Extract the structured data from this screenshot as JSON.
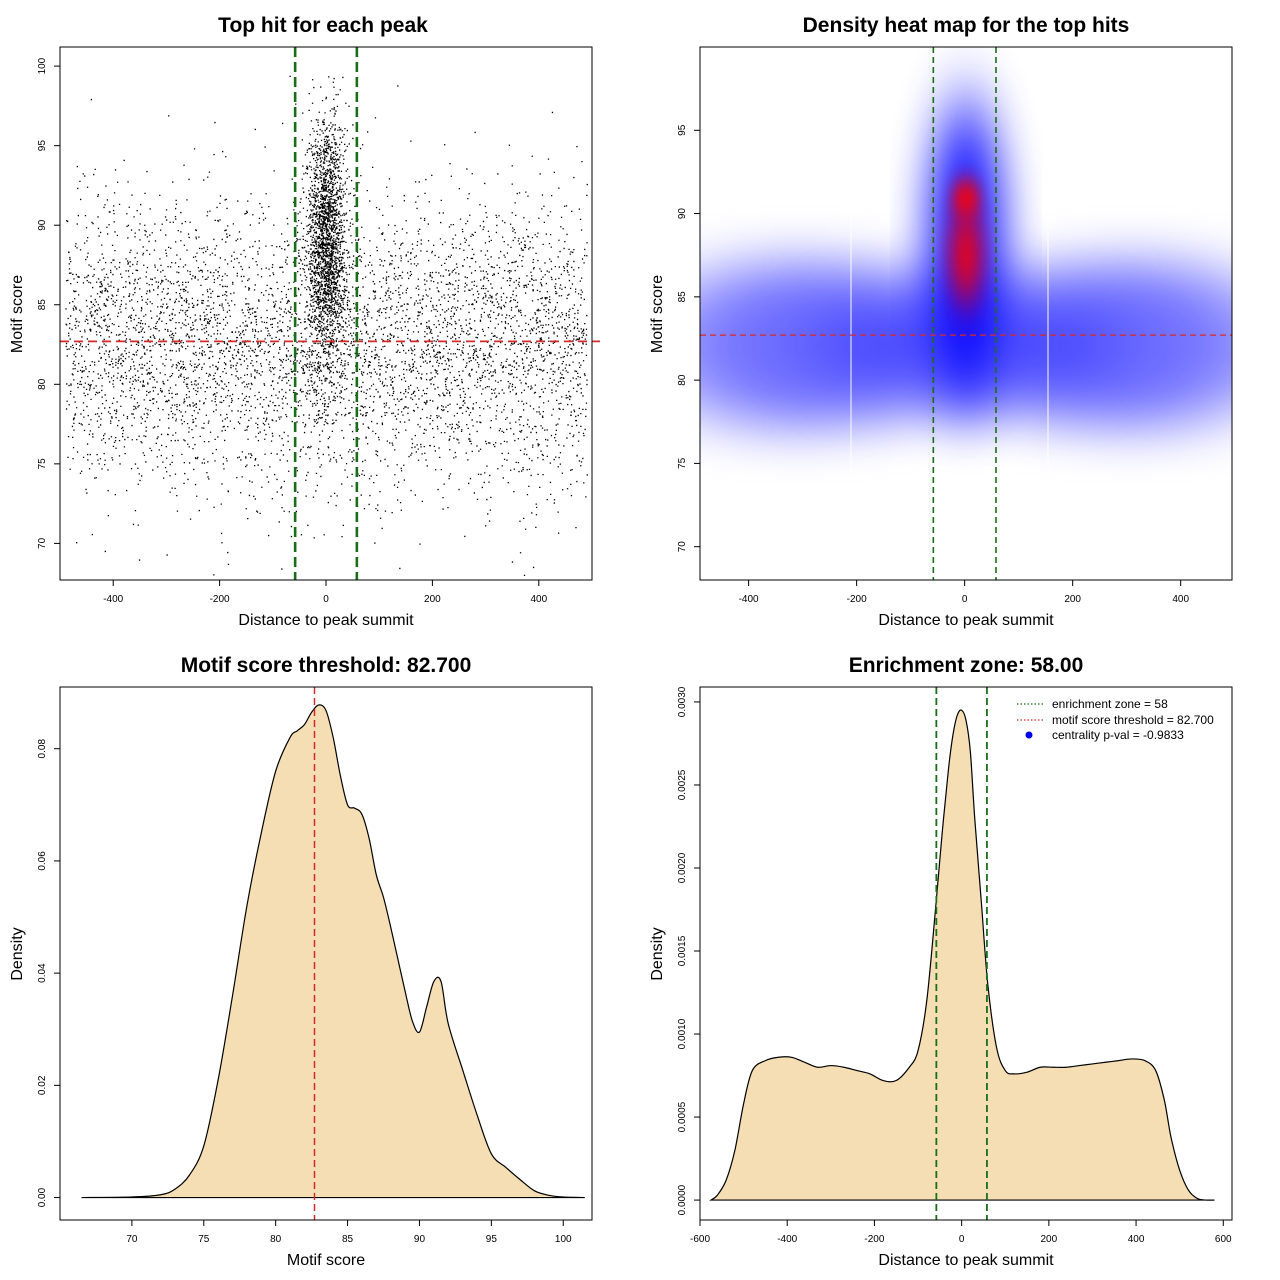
{
  "chart_data": [
    {
      "type": "scatter",
      "title": "Top hit for each peak",
      "xlabel": "Distance to peak summit",
      "ylabel": "Motif score",
      "xlim": [
        -500,
        500
      ],
      "ylim": [
        67.7,
        101.2
      ],
      "xticks": [
        -400,
        -200,
        0,
        200,
        400
      ],
      "yticks": [
        70,
        75,
        80,
        85,
        90,
        95,
        100
      ],
      "vlines": [
        -58,
        58
      ],
      "hline": 82.7,
      "point_color": "#000000",
      "vline_color": "#1a6e1a",
      "hline_color": "#d62a2a",
      "grid": false,
      "points_summary": {
        "background_x_range": [
          -490,
          490
        ],
        "background_y_mean": 82.5,
        "background_y_sd": 4.5,
        "central_cluster_x_sd": 18,
        "central_cluster_y_mean": 89,
        "central_cluster_y_sd": 4
      }
    },
    {
      "type": "heatmap",
      "title": "Density heat map for the top hits",
      "xlabel": "Distance to peak summit",
      "ylabel": "Motif score",
      "xlim": [
        -490,
        495
      ],
      "ylim": [
        68,
        100
      ],
      "xticks": [
        -400,
        -200,
        0,
        200,
        400
      ],
      "yticks": [
        70,
        75,
        80,
        85,
        90,
        95
      ],
      "vlines": [
        -58,
        58
      ],
      "hline": 82.7,
      "colors": [
        "#ffffff",
        "#0000ff",
        "#ff0000"
      ],
      "grid": false
    },
    {
      "type": "area",
      "title": "Motif score threshold: 82.700",
      "xlabel": "Motif score",
      "ylabel": "Density",
      "xlim": [
        65,
        102
      ],
      "ylim": [
        -0.004,
        0.091
      ],
      "xticks": [
        70,
        75,
        80,
        85,
        90,
        95,
        100
      ],
      "yticks": [
        0.0,
        0.02,
        0.04,
        0.06,
        0.08
      ],
      "ytick_labels": [
        "0.00",
        "0.02",
        "0.04",
        "0.06",
        "0.08"
      ],
      "vline": 82.7,
      "fill_color": "#f5deb3",
      "vline_color": "#d62a2a",
      "grid": false,
      "x": [
        66.5,
        70,
        72,
        73,
        74,
        75,
        76,
        77,
        78,
        79,
        80,
        81,
        81.5,
        82,
        82.5,
        83,
        83.5,
        84,
        84.5,
        85,
        85.5,
        86,
        86.5,
        87,
        87.5,
        88,
        88.5,
        89,
        89.5,
        90,
        90.5,
        91,
        91.5,
        92,
        93,
        94,
        95,
        96,
        97,
        98,
        99,
        100,
        101.5
      ],
      "y": [
        0.0,
        0.0001,
        0.0005,
        0.0015,
        0.004,
        0.0092,
        0.021,
        0.036,
        0.052,
        0.065,
        0.076,
        0.082,
        0.0832,
        0.0843,
        0.0865,
        0.0878,
        0.0868,
        0.082,
        0.0752,
        0.07,
        0.0694,
        0.0683,
        0.064,
        0.0575,
        0.0535,
        0.0482,
        0.0425,
        0.0368,
        0.0315,
        0.0295,
        0.034,
        0.0385,
        0.0385,
        0.031,
        0.0228,
        0.0148,
        0.0078,
        0.0054,
        0.0032,
        0.0012,
        0.0004,
        0.0001,
        0.0
      ]
    },
    {
      "type": "area",
      "title": "Enrichment zone: 58.00",
      "xlabel": "Distance to peak summit",
      "ylabel": "Density",
      "xlim": [
        -600,
        620
      ],
      "ylim": [
        -0.00012,
        0.00309
      ],
      "xticks": [
        -600,
        -400,
        -200,
        0,
        200,
        400,
        600
      ],
      "yticks": [
        0.0,
        0.0005,
        0.001,
        0.0015,
        0.002,
        0.0025,
        0.003
      ],
      "ytick_labels": [
        "0.0000",
        "0.0005",
        "0.0010",
        "0.0015",
        "0.0020",
        "0.0025",
        "0.0030"
      ],
      "vlines": [
        -58,
        58
      ],
      "fill_color": "#f5deb3",
      "vline_color": "#1a6e1a",
      "grid": false,
      "legend_position": "top-right",
      "legend": [
        {
          "label": "enrichment zone = 58",
          "color": "#1a6e1a",
          "style": "dotted-line"
        },
        {
          "label": "motif score threshold = 82.700",
          "color": "#d62a2a",
          "style": "dotted-line"
        },
        {
          "label": "centrality p-val = -0.9833",
          "color": "#0000ff",
          "style": "point"
        }
      ],
      "x": [
        -575,
        -560,
        -540,
        -520,
        -500,
        -480,
        -450,
        -420,
        -390,
        -360,
        -330,
        -300,
        -270,
        -240,
        -210,
        -180,
        -150,
        -120,
        -100,
        -80,
        -60,
        -45,
        -30,
        -20,
        -10,
        0,
        10,
        20,
        30,
        45,
        60,
        80,
        100,
        120,
        150,
        180,
        210,
        240,
        270,
        300,
        330,
        360,
        390,
        420,
        445,
        465,
        480,
        500,
        520,
        540,
        560,
        580
      ],
      "y": [
        0.0,
        3e-05,
        0.00012,
        0.0003,
        0.00058,
        0.00078,
        0.00084,
        0.00086,
        0.00086,
        0.00083,
        0.0008,
        0.00081,
        0.0008,
        0.00078,
        0.00076,
        0.00072,
        0.00072,
        0.0008,
        0.0009,
        0.0012,
        0.00175,
        0.0022,
        0.0026,
        0.0028,
        0.00292,
        0.00295,
        0.00289,
        0.0027,
        0.0023,
        0.0018,
        0.0013,
        0.00092,
        0.00078,
        0.00076,
        0.00077,
        0.0008,
        0.0008,
        0.0008,
        0.00081,
        0.00082,
        0.00083,
        0.00084,
        0.00085,
        0.00084,
        0.00078,
        0.0006,
        0.00038,
        0.00018,
        6e-05,
        1e-05,
        0.0,
        0.0
      ]
    }
  ]
}
